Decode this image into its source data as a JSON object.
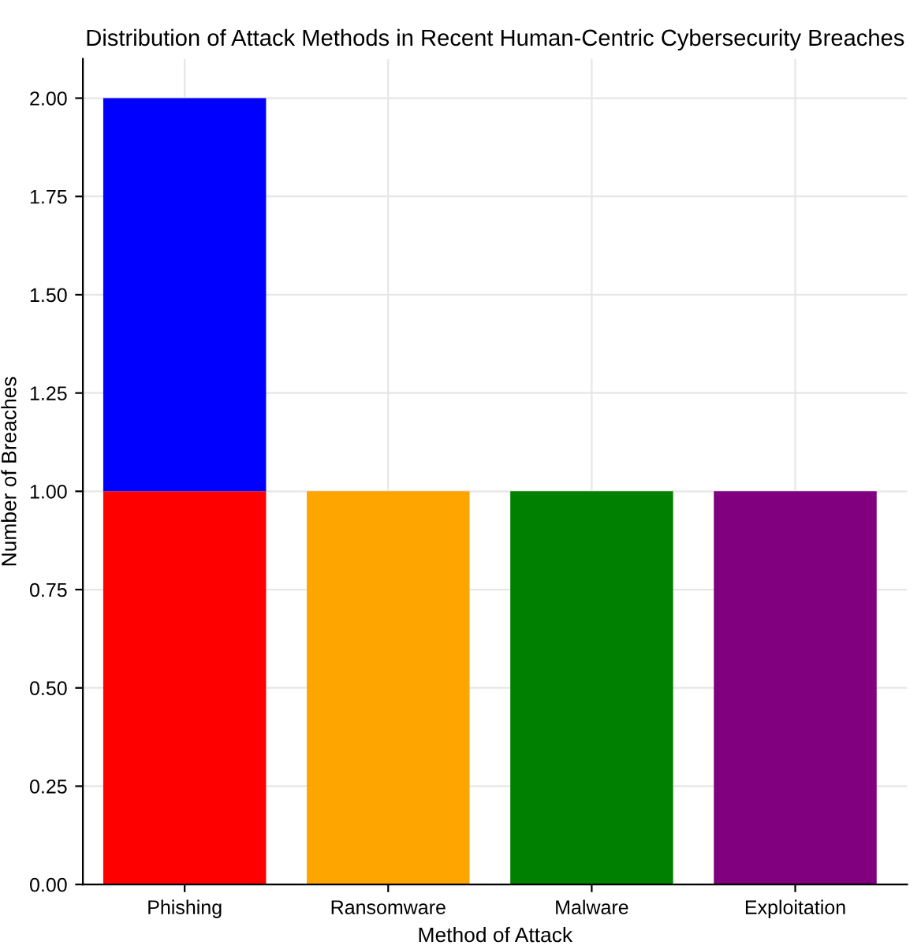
{
  "chart_data": {
    "type": "bar",
    "title": "Distribution of Attack Methods in Recent Human-Centric Cybersecurity Breaches",
    "xlabel": "Method of Attack",
    "ylabel": "Number of Breaches",
    "categories": [
      "Phishing",
      "Ransomware",
      "Malware",
      "Exploitation"
    ],
    "stacked": true,
    "series": [
      {
        "colors": [
          "#ff0000",
          "#ffa500",
          "#008000",
          "#800080"
        ],
        "values": [
          1,
          1,
          1,
          1
        ]
      },
      {
        "colors": [
          "#0000ff",
          null,
          null,
          null
        ],
        "values": [
          1,
          null,
          null,
          null
        ]
      }
    ],
    "ylim": [
      0,
      2.1
    ],
    "yticks": [
      {
        "value": 0,
        "label": "0.00"
      },
      {
        "value": 0.25,
        "label": "0.25"
      },
      {
        "value": 0.5,
        "label": "0.50"
      },
      {
        "value": 0.75,
        "label": "0.75"
      },
      {
        "value": 1,
        "label": "1.00"
      },
      {
        "value": 1.25,
        "label": "1.25"
      },
      {
        "value": 1.5,
        "label": "1.50"
      },
      {
        "value": 1.75,
        "label": "1.75"
      },
      {
        "value": 2,
        "label": "2.00"
      }
    ],
    "grid": true
  }
}
